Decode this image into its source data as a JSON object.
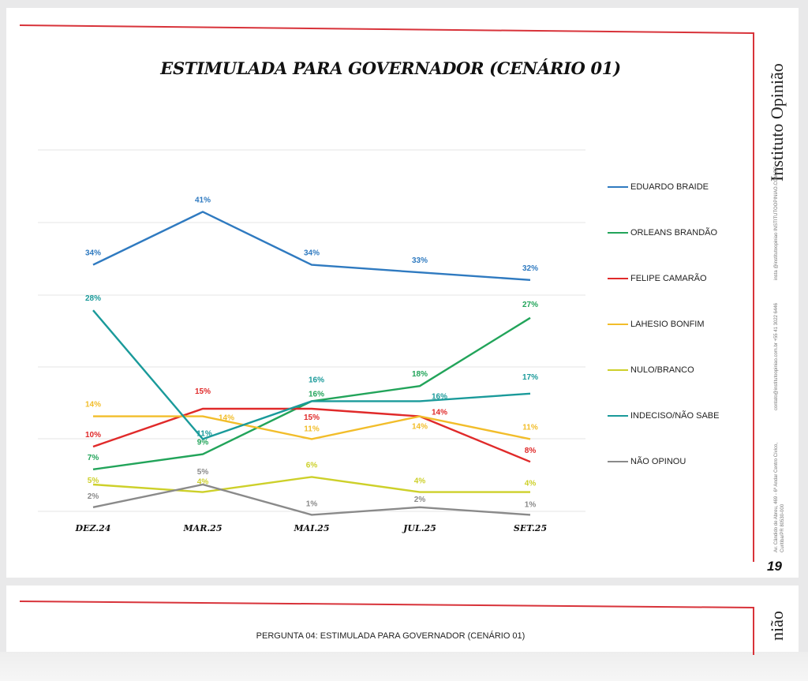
{
  "page": {
    "brand": "Instituto Opinião",
    "page_number": "19",
    "contact_lines": [
      "insta @institutoopiniao INSTITUTOOPINIAO.COM.BR",
      "contato@institutoopiniao.com.br +55 41 3022 6446",
      "Av. Cândido de Abreu, 469 - 6º Andar Centro Cívico, Curitiba/PR 80530-000"
    ],
    "next_page_question": "PERGUNTA 04: ESTIMULADA PARA GOVERNADOR (CENÁRIO 01)",
    "next_page_brand_fragment": "nião"
  },
  "chart_data": {
    "type": "line",
    "title": "ESTIMULADA PARA GOVERNADOR (CENÁRIO 01)",
    "categories": [
      "DEZ.24",
      "MAR.25",
      "MAI.25",
      "JUL.25",
      "SET.25"
    ],
    "xlabel": "",
    "ylabel": "",
    "ylim": [
      0,
      50
    ],
    "grid": true,
    "legend_position": "right",
    "series": [
      {
        "name": "EDUARDO BRAIDE",
        "color": "#2f7ac0",
        "values": [
          34,
          41,
          34,
          33,
          32
        ]
      },
      {
        "name": "ORLEANS BRANDÃO",
        "color": "#22a45a",
        "values": [
          7,
          9,
          16,
          18,
          27
        ]
      },
      {
        "name": "FELIPE CAMARÃO",
        "color": "#e02a2a",
        "values": [
          10,
          15,
          15,
          14,
          8
        ]
      },
      {
        "name": "LAHESIO BONFIM",
        "color": "#f2bd2a",
        "values": [
          14,
          14,
          11,
          14,
          11
        ]
      },
      {
        "name": "NULO/BRANCO",
        "color": "#cdd02a",
        "values": [
          5,
          4,
          6,
          4,
          4
        ]
      },
      {
        "name": "INDECISO/NÃO SABE",
        "color": "#1a9a9a",
        "values": [
          28,
          11,
          16,
          16,
          17
        ]
      },
      {
        "name": "NÃO OPINOU",
        "color": "#8a8a8a",
        "values": [
          2,
          5,
          1,
          2,
          1
        ]
      }
    ]
  }
}
